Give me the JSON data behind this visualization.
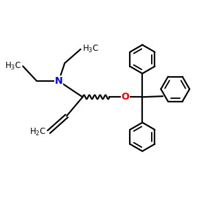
{
  "bg_color": "#ffffff",
  "bond_color": "#000000",
  "N_color": "#0000ff",
  "O_color": "#ff0000",
  "line_width": 1.6,
  "figsize": [
    3.0,
    3.0
  ],
  "dpi": 100,
  "xlim": [
    0,
    10
  ],
  "ylim": [
    0,
    10
  ]
}
